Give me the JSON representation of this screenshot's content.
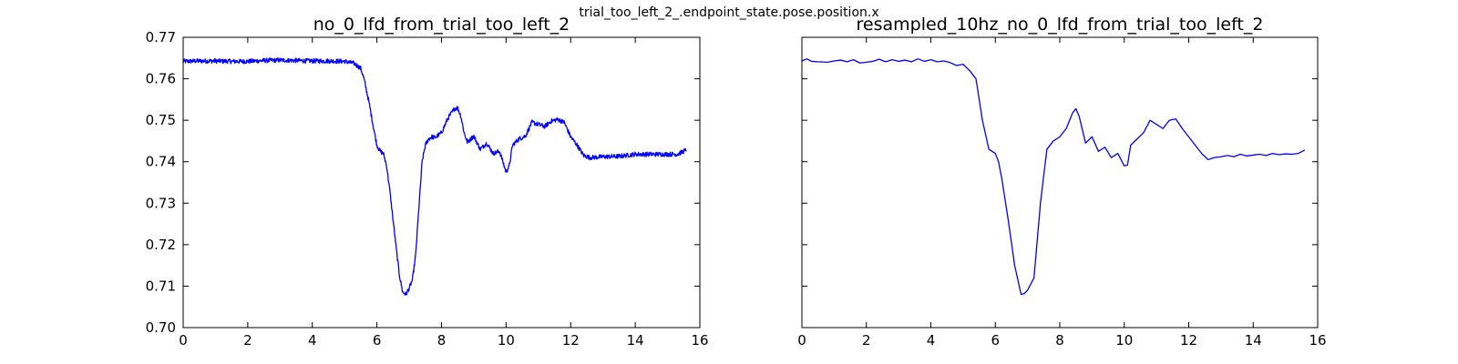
{
  "figure": {
    "suptitle": "trial_too_left_2_.endpoint_state.pose.position.x",
    "line_color": "#0000ff"
  },
  "chart_data": [
    {
      "type": "line",
      "title": "no_0_lfd_from_trial_too_left_2",
      "xlabel": "",
      "ylabel": "",
      "xlim": [
        0,
        16
      ],
      "ylim": [
        0.7,
        0.77
      ],
      "x_ticks": [
        "0",
        "2",
        "4",
        "6",
        "8",
        "10",
        "12",
        "14",
        "16"
      ],
      "y_ticks": [
        "0.70",
        "0.71",
        "0.72",
        "0.73",
        "0.74",
        "0.75",
        "0.76",
        "0.77"
      ],
      "y_tick_labels_visible": true,
      "noisy": true,
      "x": [
        0,
        0.5,
        1,
        1.5,
        2,
        2.5,
        3,
        3.5,
        4,
        4.5,
        5,
        5.3,
        5.5,
        5.6,
        5.75,
        5.9,
        6.0,
        6.1,
        6.2,
        6.3,
        6.4,
        6.5,
        6.6,
        6.7,
        6.8,
        6.9,
        7.0,
        7.1,
        7.2,
        7.3,
        7.4,
        7.5,
        7.6,
        7.7,
        7.8,
        8.0,
        8.2,
        8.4,
        8.5,
        8.6,
        8.7,
        8.8,
        9.0,
        9.2,
        9.4,
        9.6,
        9.8,
        10.0,
        10.1,
        10.2,
        10.4,
        10.6,
        10.8,
        11.0,
        11.2,
        11.4,
        11.6,
        11.8,
        12.0,
        12.2,
        12.4,
        12.6,
        13,
        13.5,
        14,
        14.5,
        15,
        15.3,
        15.5,
        15.6
      ],
      "y": [
        0.7642,
        0.7643,
        0.7643,
        0.7642,
        0.7642,
        0.7644,
        0.7645,
        0.7644,
        0.7643,
        0.7643,
        0.7642,
        0.7637,
        0.7625,
        0.76,
        0.7545,
        0.748,
        0.744,
        0.7425,
        0.742,
        0.739,
        0.733,
        0.726,
        0.719,
        0.7125,
        0.7085,
        0.708,
        0.7095,
        0.7115,
        0.7175,
        0.729,
        0.74,
        0.744,
        0.7455,
        0.746,
        0.7458,
        0.747,
        0.7505,
        0.7528,
        0.753,
        0.751,
        0.747,
        0.7447,
        0.7462,
        0.743,
        0.7445,
        0.742,
        0.7425,
        0.7375,
        0.739,
        0.744,
        0.7455,
        0.7462,
        0.7495,
        0.749,
        0.7485,
        0.7498,
        0.7502,
        0.7495,
        0.746,
        0.744,
        0.7415,
        0.741,
        0.7412,
        0.7413,
        0.7418,
        0.7418,
        0.7418,
        0.7418,
        0.7425,
        0.743
      ]
    },
    {
      "type": "line",
      "title": "resampled_10hz_no_0_lfd_from_trial_too_left_2",
      "xlabel": "",
      "ylabel": "",
      "xlim": [
        0,
        16
      ],
      "ylim": [
        0.7,
        0.77
      ],
      "x_ticks": [
        "0",
        "2",
        "4",
        "6",
        "8",
        "10",
        "12",
        "14",
        "16"
      ],
      "y_ticks": [
        "",
        "",
        "",
        "",
        "",
        "",
        "",
        ""
      ],
      "y_tick_labels_visible": false,
      "noisy": false,
      "x": [
        0,
        0.15,
        0.3,
        0.5,
        0.8,
        1.0,
        1.2,
        1.4,
        1.6,
        1.8,
        2.0,
        2.2,
        2.4,
        2.6,
        2.8,
        3.0,
        3.2,
        3.4,
        3.6,
        3.8,
        4.0,
        4.2,
        4.4,
        4.6,
        4.8,
        5.0,
        5.2,
        5.4,
        5.6,
        5.8,
        6.0,
        6.1,
        6.2,
        6.4,
        6.6,
        6.8,
        6.9,
        7.0,
        7.2,
        7.4,
        7.6,
        7.8,
        8.0,
        8.2,
        8.4,
        8.5,
        8.6,
        8.8,
        9.0,
        9.2,
        9.4,
        9.6,
        9.8,
        10.0,
        10.1,
        10.2,
        10.4,
        10.6,
        10.8,
        11.0,
        11.2,
        11.4,
        11.6,
        11.8,
        12.0,
        12.2,
        12.4,
        12.6,
        12.8,
        13.0,
        13.2,
        13.4,
        13.6,
        13.8,
        14.0,
        14.2,
        14.4,
        14.6,
        14.8,
        15.0,
        15.2,
        15.4,
        15.6
      ],
      "y": [
        0.7643,
        0.7648,
        0.7642,
        0.7641,
        0.764,
        0.7643,
        0.7645,
        0.7641,
        0.7646,
        0.7638,
        0.764,
        0.7642,
        0.7647,
        0.7641,
        0.7646,
        0.7642,
        0.7645,
        0.7641,
        0.7648,
        0.7642,
        0.7646,
        0.7641,
        0.7643,
        0.7639,
        0.7632,
        0.7635,
        0.762,
        0.76,
        0.75,
        0.743,
        0.742,
        0.74,
        0.736,
        0.726,
        0.715,
        0.708,
        0.7082,
        0.709,
        0.712,
        0.73,
        0.743,
        0.745,
        0.746,
        0.748,
        0.7518,
        0.7528,
        0.751,
        0.7445,
        0.746,
        0.7425,
        0.7435,
        0.741,
        0.742,
        0.739,
        0.7392,
        0.744,
        0.7455,
        0.747,
        0.75,
        0.749,
        0.748,
        0.75,
        0.7503,
        0.748,
        0.746,
        0.744,
        0.742,
        0.7405,
        0.741,
        0.7412,
        0.7415,
        0.7412,
        0.7418,
        0.7414,
        0.7416,
        0.7418,
        0.7415,
        0.742,
        0.7417,
        0.7419,
        0.7418,
        0.742,
        0.7428
      ]
    }
  ]
}
